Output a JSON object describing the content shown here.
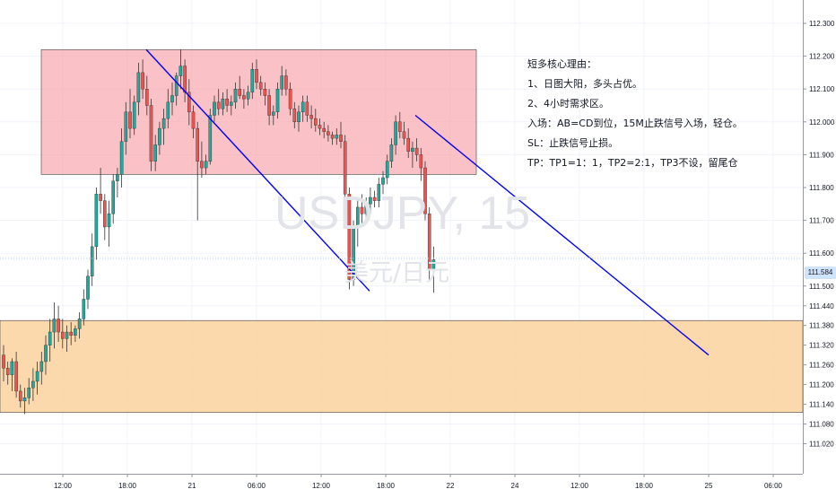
{
  "chart_data": {
    "type": "candlestick",
    "symbol": "USDJPY, 15",
    "symbol_description": "美元/日元",
    "y_axis": {
      "ylim": [
        111.02,
        112.36
      ],
      "ticks": [
        "112.300",
        "112.200",
        "112.100",
        "112.000",
        "111.900",
        "111.800",
        "111.700",
        "111.600",
        "111.500",
        "111.440",
        "111.380",
        "111.320",
        "111.260",
        "111.200",
        "111.140",
        "111.080",
        "111.020"
      ]
    },
    "x_axis": {
      "ticks": [
        "12:00",
        "18:00",
        "21",
        "06:00",
        "12:00",
        "18:00",
        "22",
        "24",
        "12:00",
        "18:00",
        "25",
        "06:00"
      ]
    },
    "last_price": "111.584",
    "colors": {
      "up": "#26a69a",
      "down": "#ef5350",
      "zone_top": "#f7a1a8",
      "zone_bottom": "#fbd29e",
      "trendline": "#0000ff"
    },
    "annotations": {
      "resistance_zone": {
        "top": 112.22,
        "bottom": 111.84
      },
      "demand_zone": {
        "top": 111.395,
        "bottom": 111.115
      },
      "trendlines": [
        {
          "from": {
            "time": "20日 19:45",
            "price": 112.22
          },
          "to": {
            "time": "21日 16:30",
            "price": 111.485
          }
        },
        {
          "from": {
            "time": "21日 20:45",
            "price": 112.02
          },
          "to": {
            "time": "23日 00:00",
            "price": 111.29
          }
        }
      ]
    },
    "candles_ohlc": [
      [
        111.29,
        111.32,
        111.21,
        111.25
      ],
      [
        111.25,
        111.27,
        111.2,
        111.23
      ],
      [
        111.23,
        111.28,
        111.18,
        111.27
      ],
      [
        111.27,
        111.3,
        111.16,
        111.18
      ],
      [
        111.18,
        111.2,
        111.13,
        111.15
      ],
      [
        111.15,
        111.19,
        111.11,
        111.16
      ],
      [
        111.16,
        111.22,
        111.14,
        111.19
      ],
      [
        111.19,
        111.25,
        111.15,
        111.21
      ],
      [
        111.21,
        111.27,
        111.17,
        111.24
      ],
      [
        111.24,
        111.3,
        111.2,
        111.27
      ],
      [
        111.27,
        111.35,
        111.23,
        111.32
      ],
      [
        111.32,
        111.4,
        111.27,
        111.36
      ],
      [
        111.36,
        111.45,
        111.31,
        111.4
      ],
      [
        111.4,
        111.44,
        111.33,
        111.36
      ],
      [
        111.36,
        111.4,
        111.31,
        111.34
      ],
      [
        111.34,
        111.38,
        111.3,
        111.36
      ],
      [
        111.36,
        111.39,
        111.32,
        111.35
      ],
      [
        111.35,
        111.38,
        111.33,
        111.37
      ],
      [
        111.37,
        111.42,
        111.34,
        111.4
      ],
      [
        111.4,
        111.49,
        111.38,
        111.46
      ],
      [
        111.46,
        111.55,
        111.43,
        111.53
      ],
      [
        111.53,
        111.66,
        111.5,
        111.62
      ],
      [
        111.62,
        111.8,
        111.58,
        111.78
      ],
      [
        111.78,
        111.86,
        111.72,
        111.76
      ],
      [
        111.76,
        111.78,
        111.64,
        111.68
      ],
      [
        111.68,
        111.76,
        111.62,
        111.72
      ],
      [
        111.72,
        111.84,
        111.69,
        111.82
      ],
      [
        111.82,
        111.86,
        111.77,
        111.84
      ],
      [
        111.84,
        111.98,
        111.8,
        111.94
      ],
      [
        111.94,
        112.06,
        111.9,
        112.03
      ],
      [
        112.03,
        112.1,
        111.95,
        111.98
      ],
      [
        111.98,
        112.08,
        111.96,
        112.06
      ],
      [
        112.06,
        112.18,
        112.02,
        112.15
      ],
      [
        112.15,
        112.19,
        112.07,
        112.1
      ],
      [
        112.1,
        112.14,
        112.02,
        112.05
      ],
      [
        112.05,
        112.07,
        111.85,
        111.88
      ],
      [
        111.88,
        111.96,
        111.85,
        111.93
      ],
      [
        111.93,
        112.0,
        111.9,
        111.98
      ],
      [
        111.98,
        112.04,
        111.93,
        112.01
      ],
      [
        112.01,
        112.1,
        111.98,
        112.06
      ],
      [
        112.06,
        112.12,
        112.02,
        112.08
      ],
      [
        112.08,
        112.15,
        112.05,
        112.14
      ],
      [
        112.14,
        112.22,
        112.1,
        112.17
      ],
      [
        112.17,
        112.19,
        112.06,
        112.09
      ],
      [
        112.09,
        112.13,
        111.99,
        112.03
      ],
      [
        112.03,
        112.05,
        111.95,
        111.98
      ],
      [
        111.98,
        112.0,
        111.7,
        111.88
      ],
      [
        111.88,
        111.94,
        111.83,
        111.86
      ],
      [
        111.86,
        111.9,
        111.84,
        111.88
      ],
      [
        111.88,
        112.04,
        111.87,
        112.02
      ],
      [
        112.02,
        112.08,
        112.0,
        112.06
      ],
      [
        112.06,
        112.1,
        112.02,
        112.04
      ],
      [
        112.04,
        112.09,
        112.02,
        112.07
      ],
      [
        112.07,
        112.1,
        112.03,
        112.05
      ],
      [
        112.05,
        112.08,
        112.02,
        112.06
      ],
      [
        112.06,
        112.12,
        112.04,
        112.1
      ],
      [
        112.1,
        112.14,
        112.07,
        112.08
      ],
      [
        112.08,
        112.1,
        112.04,
        112.07
      ],
      [
        112.07,
        112.11,
        112.05,
        112.09
      ],
      [
        112.09,
        112.18,
        112.07,
        112.16
      ],
      [
        112.16,
        112.19,
        112.1,
        112.12
      ],
      [
        112.12,
        112.14,
        112.08,
        112.1
      ],
      [
        112.1,
        112.12,
        112.05,
        112.08
      ],
      [
        112.08,
        112.1,
        111.99,
        112.02
      ],
      [
        112.02,
        112.05,
        111.99,
        112.03
      ],
      [
        112.03,
        112.12,
        112.01,
        112.1
      ],
      [
        112.1,
        112.17,
        112.08,
        112.14
      ],
      [
        112.14,
        112.16,
        112.08,
        112.1
      ],
      [
        112.1,
        112.12,
        112.02,
        112.04
      ],
      [
        112.04,
        112.06,
        111.98,
        112.0
      ],
      [
        112.0,
        112.05,
        111.97,
        112.03
      ],
      [
        112.03,
        112.08,
        112.0,
        112.06
      ],
      [
        112.06,
        112.08,
        112.0,
        112.02
      ],
      [
        112.02,
        112.05,
        111.98,
        112.01
      ],
      [
        112.01,
        112.04,
        111.97,
        111.99
      ],
      [
        111.99,
        112.01,
        111.96,
        111.98
      ],
      [
        111.98,
        112.0,
        111.95,
        111.97
      ],
      [
        111.97,
        111.99,
        111.94,
        111.96
      ],
      [
        111.96,
        111.97,
        111.93,
        111.95
      ],
      [
        111.95,
        111.98,
        111.93,
        111.96
      ],
      [
        111.96,
        112.0,
        111.92,
        111.94
      ],
      [
        111.94,
        111.96,
        111.76,
        111.78
      ],
      [
        111.78,
        111.8,
        111.49,
        111.52
      ],
      [
        111.52,
        111.7,
        111.5,
        111.68
      ],
      [
        111.68,
        111.76,
        111.62,
        111.74
      ],
      [
        111.74,
        111.78,
        111.68,
        111.72
      ],
      [
        111.72,
        111.77,
        111.69,
        111.75
      ],
      [
        111.75,
        111.8,
        111.72,
        111.77
      ],
      [
        111.77,
        111.79,
        111.74,
        111.76
      ],
      [
        111.76,
        111.83,
        111.74,
        111.81
      ],
      [
        111.81,
        111.85,
        111.78,
        111.83
      ],
      [
        111.83,
        111.9,
        111.81,
        111.88
      ],
      [
        111.88,
        111.95,
        111.86,
        111.93
      ],
      [
        111.93,
        112.02,
        111.9,
        112.0
      ],
      [
        112.0,
        112.03,
        111.95,
        111.97
      ],
      [
        111.97,
        112.0,
        111.93,
        111.95
      ],
      [
        111.95,
        111.98,
        111.89,
        111.91
      ],
      [
        111.91,
        111.94,
        111.86,
        111.92
      ],
      [
        111.92,
        111.95,
        111.88,
        111.9
      ],
      [
        111.9,
        111.92,
        111.82,
        111.86
      ],
      [
        111.86,
        111.88,
        111.7,
        111.72
      ],
      [
        111.72,
        111.74,
        111.52,
        111.55
      ],
      [
        111.55,
        111.62,
        111.48,
        111.58
      ]
    ]
  },
  "notes": {
    "line1": "短多核心理由：",
    "line2": "1、日图大阳，多头占优。",
    "line3": "2、4小时需求区。",
    "line4": "入场：AB=CD到位，15M止跌信号入场，轻仓。",
    "line5": "SL：止跌信号止损。",
    "line6": "TP：TP1=1：1，TP2=2:1，TP3不设，留尾仓"
  }
}
